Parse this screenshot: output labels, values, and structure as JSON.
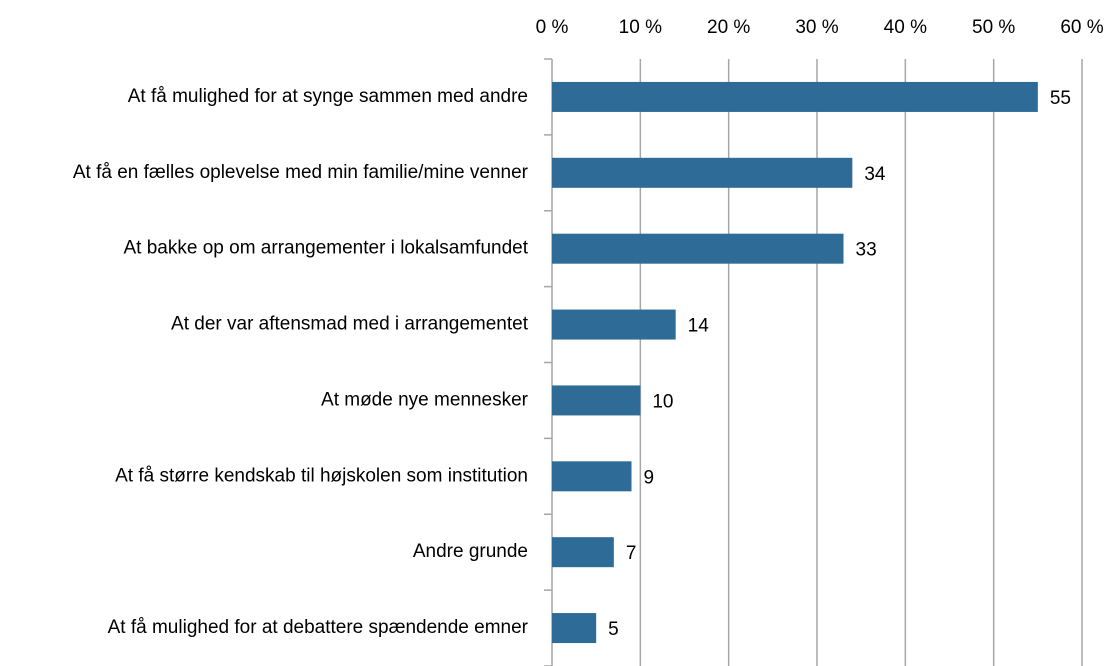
{
  "chart_data": {
    "type": "barh",
    "categories": [
      "At få mulighed for at synge sammen med andre",
      "At få en fælles oplevelse med min familie/mine venner",
      "At bakke op om arrangementer i lokalsamfundet",
      "At der var aftensmad med i arrangementet",
      "At møde nye mennesker",
      "At få større kendskab til højskolen som institution",
      "Andre grunde",
      "At få mulighed for at debattere spændende emner"
    ],
    "values": [
      55,
      34,
      33,
      14,
      10,
      9,
      7,
      5
    ],
    "color": "#2e6b96",
    "xlim": [
      0,
      60
    ],
    "xticks": [
      {
        "value": 0,
        "label": "0 %"
      },
      {
        "value": 10,
        "label": "10 %"
      },
      {
        "value": 20,
        "label": "20 %"
      },
      {
        "value": 30,
        "label": "30 %"
      },
      {
        "value": 40,
        "label": "40 %"
      },
      {
        "value": 50,
        "label": "50 %"
      },
      {
        "value": 60,
        "label": "60 %"
      }
    ],
    "grid": true
  }
}
